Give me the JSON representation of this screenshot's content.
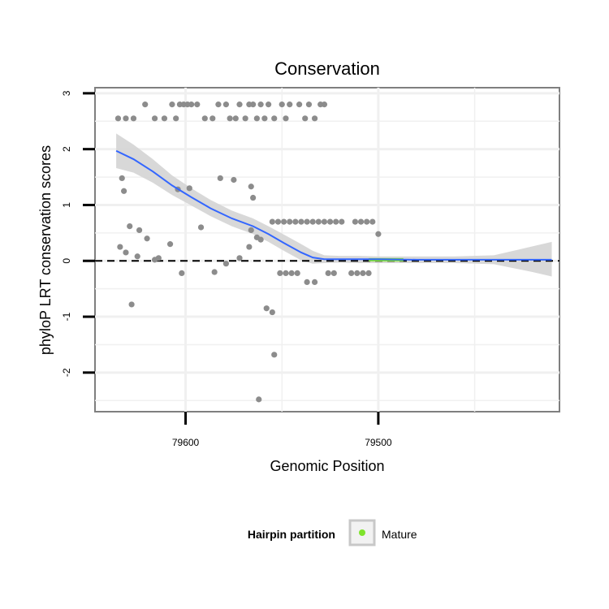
{
  "chart_data": {
    "type": "scatter",
    "title": "Conservation",
    "xlabel": "Genomic Position",
    "ylabel": "phyloP LRT conservation scores",
    "x_reversed": true,
    "xlim": [
      79647,
      79406
    ],
    "ylim": [
      -2.7,
      3.1
    ],
    "xticks": [
      79600,
      79500
    ],
    "yticks": [
      3,
      2,
      1,
      0,
      -1,
      -2
    ],
    "grid": true,
    "reference_line": {
      "y": 0,
      "style": "dashed"
    },
    "legend": {
      "title": "Hairpin partition",
      "entries": [
        "Mature"
      ],
      "position": "bottom",
      "color": "#7fe32c"
    },
    "colors": {
      "points": "#8c8c8c",
      "smooth": "#3366ff",
      "ribbon": "#d4d4d4",
      "mature": "#7fe32c"
    },
    "points": [
      [
        79635,
        2.55
      ],
      [
        79631,
        2.55
      ],
      [
        79627,
        2.55
      ],
      [
        79621,
        2.8
      ],
      [
        79616,
        2.55
      ],
      [
        79611,
        2.55
      ],
      [
        79607,
        2.8
      ],
      [
        79605,
        2.55
      ],
      [
        79603,
        2.8
      ],
      [
        79601,
        2.8
      ],
      [
        79599,
        2.8
      ],
      [
        79597,
        2.8
      ],
      [
        79594,
        2.8
      ],
      [
        79590,
        2.55
      ],
      [
        79586,
        2.55
      ],
      [
        79583,
        2.8
      ],
      [
        79579,
        2.8
      ],
      [
        79577,
        2.55
      ],
      [
        79574,
        2.55
      ],
      [
        79572,
        2.8
      ],
      [
        79569,
        2.55
      ],
      [
        79567,
        2.8
      ],
      [
        79565,
        2.8
      ],
      [
        79563,
        2.55
      ],
      [
        79561,
        2.8
      ],
      [
        79559,
        2.55
      ],
      [
        79557,
        2.8
      ],
      [
        79554,
        2.55
      ],
      [
        79550,
        2.8
      ],
      [
        79548,
        2.55
      ],
      [
        79546,
        2.8
      ],
      [
        79541,
        2.8
      ],
      [
        79538,
        2.55
      ],
      [
        79536,
        2.8
      ],
      [
        79533,
        2.55
      ],
      [
        79530,
        2.8
      ],
      [
        79528,
        2.8
      ],
      [
        79633,
        1.48
      ],
      [
        79632,
        1.25
      ],
      [
        79604,
        1.28
      ],
      [
        79598,
        1.3
      ],
      [
        79582,
        1.48
      ],
      [
        79575,
        1.45
      ],
      [
        79566,
        1.33
      ],
      [
        79565,
        1.13
      ],
      [
        79634,
        0.25
      ],
      [
        79631,
        0.15
      ],
      [
        79629,
        0.62
      ],
      [
        79624,
        0.55
      ],
      [
        79620,
        0.4
      ],
      [
        79614,
        0.05
      ],
      [
        79608,
        0.3
      ],
      [
        79592,
        0.6
      ],
      [
        79585,
        -0.2
      ],
      [
        79579,
        -0.05
      ],
      [
        79572,
        0.05
      ],
      [
        79567,
        0.25
      ],
      [
        79566,
        0.55
      ],
      [
        79563,
        0.42
      ],
      [
        79561,
        0.38
      ],
      [
        79625,
        0.08
      ],
      [
        79602,
        -0.22
      ],
      [
        79616,
        0.02
      ],
      [
        79628,
        -0.78
      ],
      [
        79558,
        -0.85
      ],
      [
        79555,
        -0.92
      ],
      [
        79554,
        -1.68
      ],
      [
        79562,
        -2.48
      ],
      [
        79555,
        0.7
      ],
      [
        79552,
        0.7
      ],
      [
        79549,
        0.7
      ],
      [
        79546,
        0.7
      ],
      [
        79543,
        0.7
      ],
      [
        79540,
        0.7
      ],
      [
        79537,
        0.7
      ],
      [
        79534,
        0.7
      ],
      [
        79531,
        0.7
      ],
      [
        79528,
        0.7
      ],
      [
        79525,
        0.7
      ],
      [
        79522,
        0.7
      ],
      [
        79519,
        0.7
      ],
      [
        79512,
        0.7
      ],
      [
        79509,
        0.7
      ],
      [
        79506,
        0.7
      ],
      [
        79503,
        0.7
      ],
      [
        79500,
        0.48
      ],
      [
        79551,
        -0.22
      ],
      [
        79548,
        -0.22
      ],
      [
        79545,
        -0.22
      ],
      [
        79542,
        -0.22
      ],
      [
        79537,
        -0.38
      ],
      [
        79533,
        -0.38
      ],
      [
        79526,
        -0.22
      ],
      [
        79523,
        -0.22
      ],
      [
        79514,
        -0.22
      ],
      [
        79511,
        -0.22
      ],
      [
        79508,
        -0.22
      ],
      [
        79505,
        -0.22
      ]
    ],
    "smooth": [
      [
        79636,
        1.97
      ],
      [
        79627,
        1.82
      ],
      [
        79617,
        1.6
      ],
      [
        79607,
        1.35
      ],
      [
        79597,
        1.14
      ],
      [
        79587,
        0.94
      ],
      [
        79576,
        0.76
      ],
      [
        79565,
        0.62
      ],
      [
        79557,
        0.48
      ],
      [
        79549,
        0.32
      ],
      [
        79540,
        0.15
      ],
      [
        79534,
        0.06
      ],
      [
        79528,
        0.03
      ],
      [
        79520,
        0.03
      ],
      [
        79510,
        0.03
      ],
      [
        79500,
        0.03
      ],
      [
        79480,
        0.02
      ],
      [
        79460,
        0.02
      ],
      [
        79440,
        0.02
      ],
      [
        79420,
        0.02
      ],
      [
        79410,
        0.02
      ]
    ],
    "ribbon": [
      [
        79636,
        2.28,
        1.66
      ],
      [
        79627,
        2.08,
        1.58
      ],
      [
        79617,
        1.82,
        1.4
      ],
      [
        79607,
        1.53,
        1.18
      ],
      [
        79597,
        1.3,
        0.99
      ],
      [
        79587,
        1.09,
        0.8
      ],
      [
        79576,
        0.9,
        0.62
      ],
      [
        79565,
        0.76,
        0.48
      ],
      [
        79557,
        0.62,
        0.34
      ],
      [
        79549,
        0.47,
        0.18
      ],
      [
        79540,
        0.3,
        0.01
      ],
      [
        79534,
        0.18,
        -0.05
      ],
      [
        79528,
        0.1,
        -0.04
      ],
      [
        79520,
        0.09,
        -0.03
      ],
      [
        79510,
        0.09,
        -0.04
      ],
      [
        79500,
        0.08,
        -0.04
      ],
      [
        79480,
        0.08,
        -0.04
      ],
      [
        79460,
        0.08,
        -0.04
      ],
      [
        79440,
        0.1,
        -0.06
      ],
      [
        79420,
        0.26,
        -0.2
      ],
      [
        79410,
        0.34,
        -0.28
      ]
    ],
    "mature_region": {
      "x": [
        79505,
        79487
      ],
      "y": 0.02
    }
  }
}
